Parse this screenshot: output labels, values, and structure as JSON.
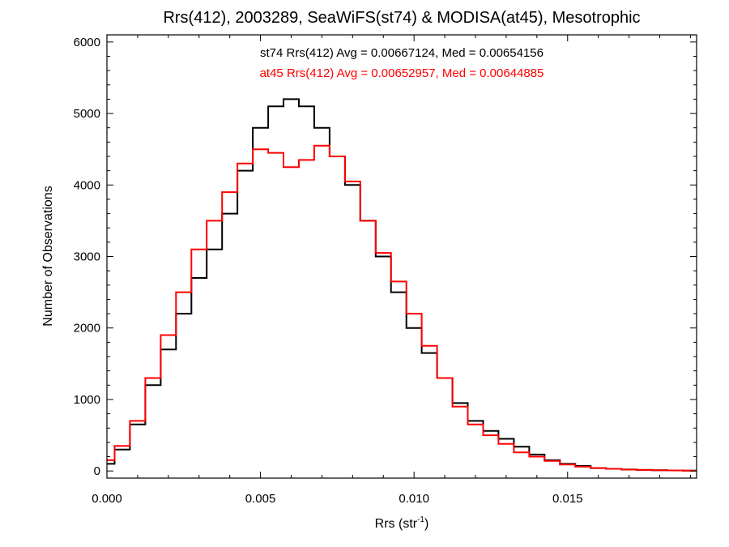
{
  "chart_data": {
    "type": "line",
    "title": "Rrs(412), 2003289, SeaWiFS(st74) & MODISA(at45), Mesotrophic",
    "xlabel": "Rrs (str",
    "xlabel_sup": "-1",
    "xlabel_suffix": ")",
    "ylabel": "Number of Observations",
    "xlim": [
      0.0,
      0.0192
    ],
    "ylim": [
      -100,
      6100
    ],
    "x_ticks": [
      {
        "value": 0.0,
        "label": "0.000"
      },
      {
        "value": 0.005,
        "label": "0.005"
      },
      {
        "value": 0.01,
        "label": "0.010"
      },
      {
        "value": 0.015,
        "label": "0.015"
      }
    ],
    "y_ticks": [
      {
        "value": 0,
        "label": "0"
      },
      {
        "value": 1000,
        "label": "1000"
      },
      {
        "value": 2000,
        "label": "2000"
      },
      {
        "value": 3000,
        "label": "3000"
      },
      {
        "value": 4000,
        "label": "4000"
      },
      {
        "value": 5000,
        "label": "5000"
      },
      {
        "value": 6000,
        "label": "6000"
      }
    ],
    "annotations": [
      {
        "text": "st74 Rrs(412) Avg = 0.00667124, Med = 0.00654156",
        "color": "#000000"
      },
      {
        "text": "at45 Rrs(412) Avg = 0.00652957, Med = 0.00644885",
        "color": "#ff0000"
      }
    ],
    "series": [
      {
        "label": "st74",
        "color": "#000000",
        "x": [
          0.0,
          0.0005,
          0.001,
          0.0015,
          0.002,
          0.0025,
          0.003,
          0.0035,
          0.004,
          0.0045,
          0.005,
          0.0055,
          0.006,
          0.0065,
          0.007,
          0.0075,
          0.008,
          0.0085,
          0.009,
          0.0095,
          0.01,
          0.0105,
          0.011,
          0.0115,
          0.012,
          0.0125,
          0.013,
          0.0135,
          0.014,
          0.0145,
          0.015,
          0.0155,
          0.016,
          0.0165,
          0.017,
          0.0175,
          0.018,
          0.0185,
          0.019
        ],
        "values": [
          100,
          300,
          650,
          1200,
          1700,
          2200,
          2700,
          3100,
          3600,
          4200,
          4800,
          5100,
          5200,
          5100,
          4800,
          4400,
          4000,
          3500,
          3000,
          2500,
          2000,
          1650,
          1300,
          950,
          700,
          560,
          450,
          340,
          230,
          150,
          100,
          70,
          40,
          30,
          20,
          15,
          10,
          8,
          5
        ]
      },
      {
        "label": "at45",
        "color": "#ff0000",
        "x": [
          0.0,
          0.0005,
          0.001,
          0.0015,
          0.002,
          0.0025,
          0.003,
          0.0035,
          0.004,
          0.0045,
          0.005,
          0.0055,
          0.006,
          0.0065,
          0.007,
          0.0075,
          0.008,
          0.0085,
          0.009,
          0.0095,
          0.01,
          0.0105,
          0.011,
          0.0115,
          0.012,
          0.0125,
          0.013,
          0.0135,
          0.014,
          0.0145,
          0.015,
          0.0155,
          0.016,
          0.0165,
          0.017,
          0.0175,
          0.018,
          0.0185,
          0.019
        ],
        "values": [
          150,
          350,
          700,
          1300,
          1900,
          2500,
          3100,
          3500,
          3900,
          4300,
          4500,
          4450,
          4250,
          4350,
          4550,
          4400,
          4050,
          3500,
          3050,
          2650,
          2200,
          1750,
          1300,
          900,
          650,
          500,
          380,
          260,
          200,
          140,
          90,
          60,
          40,
          30,
          20,
          15,
          10,
          8,
          5
        ]
      }
    ]
  }
}
